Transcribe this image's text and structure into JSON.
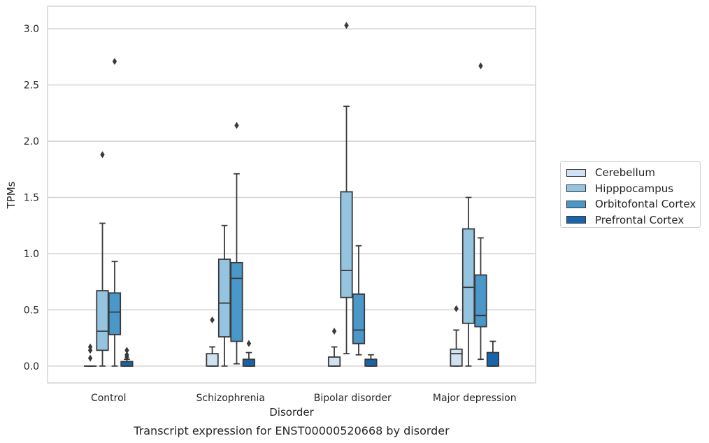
{
  "chart_data": {
    "type": "box",
    "title": "Transcript expression for ENST00000520668 by disorder",
    "xlabel": "Disorder",
    "ylabel": "TPMs",
    "ylim": [
      -0.15,
      3.2
    ],
    "yticks": [
      "0.0",
      "0.5",
      "1.0",
      "1.5",
      "2.0",
      "2.5",
      "3.0"
    ],
    "grid": "horizontal",
    "legend_position": "right",
    "categories": [
      "Control",
      "Schizophrenia",
      "Bipolar disorder",
      "Major depression"
    ],
    "series": [
      {
        "name": "Cerebellum",
        "color": "#d0e1f2",
        "boxes": [
          {
            "whislo": 0.0,
            "q1": 0.0,
            "med": 0.0,
            "q3": 0.0,
            "whishi": 0.0,
            "fliers": [
              0.07,
              0.14,
              0.17
            ]
          },
          {
            "whislo": 0.0,
            "q1": 0.0,
            "med": 0.0,
            "q3": 0.11,
            "whishi": 0.17,
            "fliers": [
              0.41
            ]
          },
          {
            "whislo": 0.0,
            "q1": 0.0,
            "med": 0.0,
            "q3": 0.08,
            "whishi": 0.17,
            "fliers": [
              0.31
            ]
          },
          {
            "whislo": 0.0,
            "q1": 0.0,
            "med": 0.11,
            "q3": 0.15,
            "whishi": 0.32,
            "fliers": [
              0.51
            ]
          }
        ]
      },
      {
        "name": "Hipppocampus",
        "color": "#94c4df",
        "boxes": [
          {
            "whislo": 0.0,
            "q1": 0.14,
            "med": 0.31,
            "q3": 0.67,
            "whishi": 1.27,
            "fliers": [
              1.88
            ]
          },
          {
            "whislo": 0.0,
            "q1": 0.26,
            "med": 0.56,
            "q3": 0.95,
            "whishi": 1.25,
            "fliers": []
          },
          {
            "whislo": 0.11,
            "q1": 0.61,
            "med": 0.85,
            "q3": 1.55,
            "whishi": 2.31,
            "fliers": [
              3.03
            ]
          },
          {
            "whislo": 0.0,
            "q1": 0.38,
            "med": 0.7,
            "q3": 1.22,
            "whishi": 1.5,
            "fliers": []
          }
        ]
      },
      {
        "name": "Orbitofontal Cortex",
        "color": "#4a98c9",
        "boxes": [
          {
            "whislo": 0.0,
            "q1": 0.28,
            "med": 0.48,
            "q3": 0.65,
            "whishi": 0.93,
            "fliers": [
              2.71
            ]
          },
          {
            "whislo": 0.02,
            "q1": 0.22,
            "med": 0.78,
            "q3": 0.92,
            "whishi": 1.71,
            "fliers": [
              2.14
            ]
          },
          {
            "whislo": 0.1,
            "q1": 0.2,
            "med": 0.32,
            "q3": 0.64,
            "whishi": 1.07,
            "fliers": []
          },
          {
            "whislo": 0.06,
            "q1": 0.35,
            "med": 0.45,
            "q3": 0.81,
            "whishi": 1.14,
            "fliers": [
              2.67
            ]
          }
        ]
      },
      {
        "name": "Prefrontal Cortex",
        "color": "#1764ab",
        "boxes": [
          {
            "whislo": 0.0,
            "q1": 0.0,
            "med": 0.0,
            "q3": 0.04,
            "whishi": 0.06,
            "fliers": [
              0.08,
              0.1,
              0.14
            ]
          },
          {
            "whislo": 0.0,
            "q1": 0.0,
            "med": 0.0,
            "q3": 0.06,
            "whishi": 0.12,
            "fliers": [
              0.2
            ]
          },
          {
            "whislo": 0.0,
            "q1": 0.0,
            "med": 0.0,
            "q3": 0.06,
            "whishi": 0.1,
            "fliers": []
          },
          {
            "whislo": 0.0,
            "q1": 0.0,
            "med": 0.0,
            "q3": 0.12,
            "whishi": 0.22,
            "fliers": []
          }
        ]
      }
    ]
  }
}
